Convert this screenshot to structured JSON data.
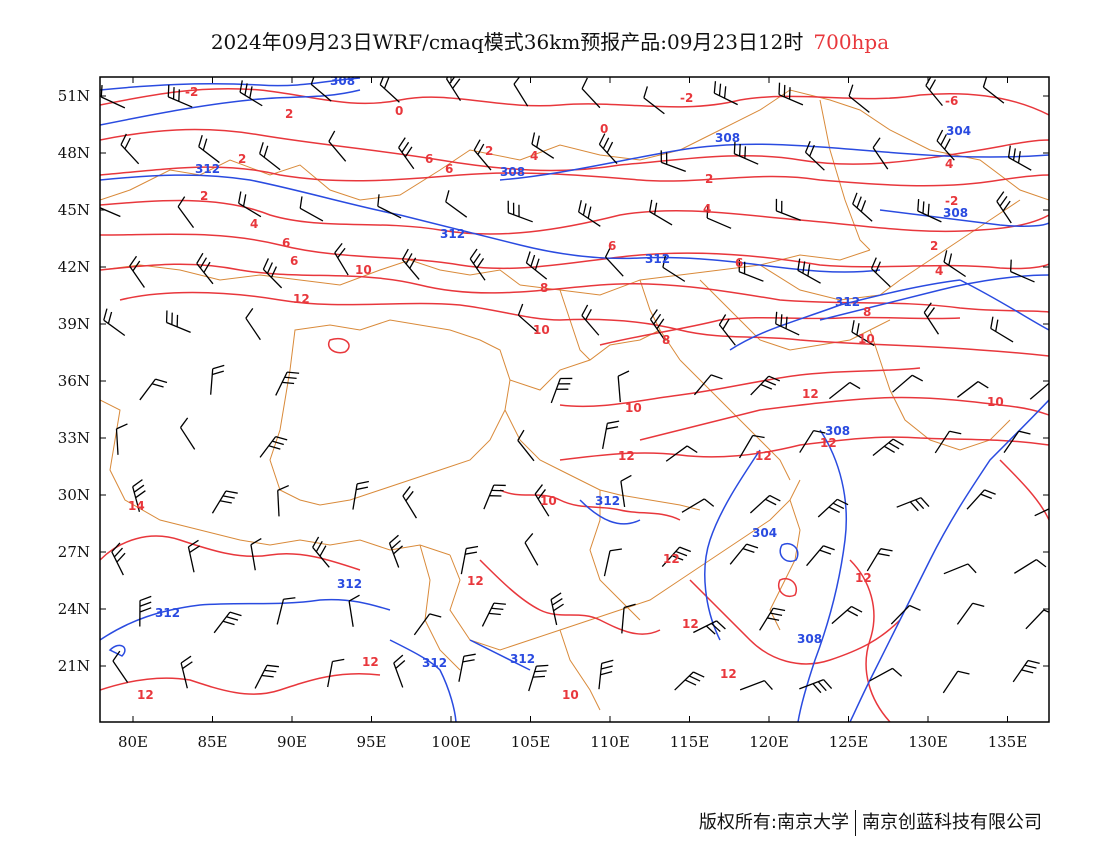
{
  "header": {
    "title": "2024年09月23日WRF/cmaq模式36km预报产品:09月23日12时",
    "level": "700hpa"
  },
  "map": {
    "lon_range": [
      78,
      138
    ],
    "lat_range": [
      18,
      52
    ],
    "lat_ticks": [
      "51N",
      "48N",
      "45N",
      "42N",
      "39N",
      "36N",
      "33N",
      "30N",
      "27N",
      "24N",
      "21N"
    ],
    "lon_ticks": [
      "80E",
      "85E",
      "90E",
      "95E",
      "100E",
      "105E",
      "110E",
      "115E",
      "120E",
      "125E",
      "130E",
      "135E"
    ],
    "colors": {
      "temperature": "#e8373c",
      "height": "#2a4be0",
      "boundary": "#d98a3a",
      "wind_barb": "#000000"
    },
    "temperature_labels": [
      "-2",
      "2",
      "0",
      "-2",
      "2",
      "0",
      "2",
      "4",
      "2",
      "-6",
      "4",
      "-2",
      "2",
      "4",
      "6",
      "6",
      "4",
      "2",
      "4",
      "6",
      "6",
      "10",
      "6",
      "6",
      "8",
      "12",
      "8",
      "10",
      "8",
      "10",
      "10",
      "12",
      "10",
      "10",
      "12",
      "12",
      "12",
      "12",
      "14",
      "12",
      "12",
      "12",
      "12",
      "12",
      "12",
      "10"
    ],
    "height_labels": [
      "308",
      "312",
      "308",
      "308",
      "304",
      "308",
      "312",
      "312",
      "312",
      "308",
      "312",
      "304",
      "308",
      "312",
      "312",
      "312",
      "312"
    ]
  },
  "footer": {
    "copyright_left": "版权所有:南京大学",
    "copyright_right": "南京创蓝科技有限公司"
  }
}
